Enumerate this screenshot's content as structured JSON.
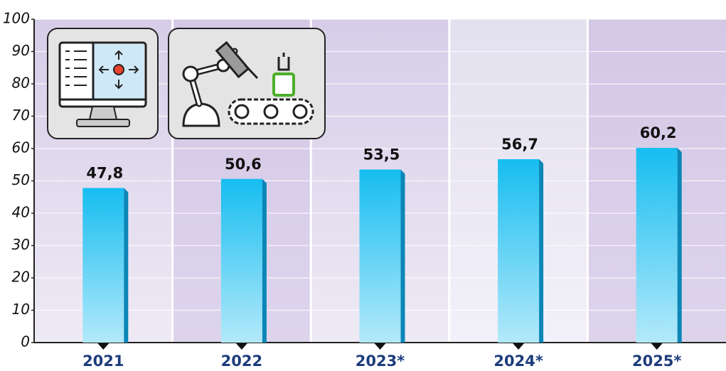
{
  "chart_data": {
    "type": "bar",
    "categories": [
      "2021",
      "2022",
      "2023*",
      "2024*",
      "2025*"
    ],
    "values": [
      47.8,
      50.6,
      53.5,
      56.7,
      60.2
    ],
    "value_labels": [
      "47,8",
      "50,6",
      "53,5",
      "56,7",
      "60,2"
    ],
    "color": "#16bdf0",
    "ylim": [
      0,
      100
    ],
    "yticks": [
      0,
      10,
      20,
      30,
      40,
      50,
      60,
      70,
      80,
      90,
      100
    ],
    "grid": true
  }
}
